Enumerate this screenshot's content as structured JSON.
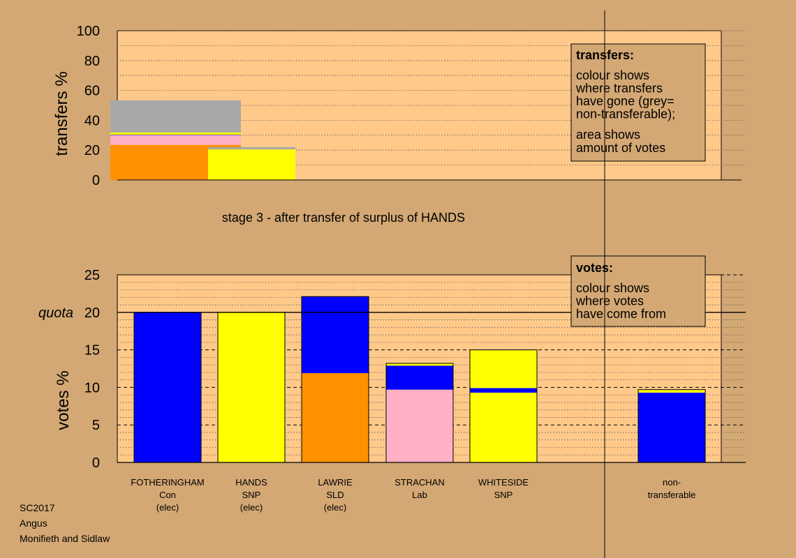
{
  "colors": {
    "background": "#D4A874",
    "plot_background": "#FFC98A",
    "legend_background": "#D4A874",
    "Con": "#0000FF",
    "SNP": "#FFFF00",
    "SLD": "#FF9100",
    "Lab": "#FFB0C4",
    "non_transferable": "#A8A8A8"
  },
  "chart_data": [
    {
      "type": "bar",
      "title": "stage 3 - after transfer of surplus of HANDS",
      "ylabel": "transfers %",
      "ylim": [
        0,
        100
      ],
      "yticks": [
        0,
        20,
        40,
        60,
        80,
        100
      ],
      "grid": true,
      "legend": {
        "placement": "top-right",
        "title": "transfers:",
        "lines_a": [
          "colour shows",
          "where transfers",
          "have gone (grey=",
          "non-transferable);"
        ],
        "lines_b": [
          "area shows",
          "amount of votes"
        ]
      },
      "bars": [
        {
          "source": "FOTHERINGHAM",
          "segments": [
            {
              "to": "SLD",
              "color": "#FF9100",
              "value": 23.5
            },
            {
              "to": "Lab",
              "color": "#FFB0C4",
              "value": 6.5
            },
            {
              "to": "Con",
              "color": "#0000FF",
              "value": 0.3
            },
            {
              "to": "SNP",
              "color": "#FFFF00",
              "value": 1.5
            },
            {
              "to": "non-transferable",
              "color": "#A8A8A8",
              "value": 21.5
            }
          ]
        },
        {
          "source": "HANDS",
          "segments": [
            {
              "to": "SNP",
              "color": "#FFFF00",
              "value": 20.5
            },
            {
              "to": "non-transferable",
              "color": "#A8A8A8",
              "value": 1.5
            }
          ]
        }
      ]
    },
    {
      "type": "bar",
      "ylabel": "votes %",
      "ylim": [
        0,
        25
      ],
      "yticks": [
        0,
        5,
        10,
        15,
        20,
        25
      ],
      "quota": {
        "label": "quota",
        "value": 20
      },
      "grid": true,
      "legend": {
        "placement": "top-right",
        "title": "votes:",
        "lines": [
          "colour shows",
          "where votes",
          "have come from"
        ]
      },
      "categories": [
        {
          "lines": [
            "FOTHERINGHAM",
            "Con",
            "(elec)"
          ]
        },
        {
          "lines": [
            "HANDS",
            "SNP",
            "(elec)"
          ]
        },
        {
          "lines": [
            "LAWRIE",
            "SLD",
            "(elec)"
          ]
        },
        {
          "lines": [
            "STRACHAN",
            "Lab"
          ]
        },
        {
          "lines": [
            "WHITESIDE",
            "SNP"
          ]
        },
        {
          "lines": [
            "non-",
            "transferable"
          ]
        }
      ],
      "bars": [
        {
          "name": "FOTHERINGHAM",
          "segments": [
            {
              "from": "Con",
              "color": "#0000FF",
              "value": 20.0
            }
          ]
        },
        {
          "name": "HANDS",
          "segments": [
            {
              "from": "SNP",
              "color": "#FFFF00",
              "value": 20.0
            }
          ]
        },
        {
          "name": "LAWRIE",
          "segments": [
            {
              "from": "SLD",
              "color": "#FF9100",
              "value": 11.9
            },
            {
              "from": "Con",
              "color": "#0000FF",
              "value": 10.2
            }
          ]
        },
        {
          "name": "STRACHAN",
          "segments": [
            {
              "from": "Lab",
              "color": "#FFB0C4",
              "value": 9.7
            },
            {
              "from": "Con",
              "color": "#0000FF",
              "value": 3.2
            },
            {
              "from": "SNP",
              "color": "#FFFF00",
              "value": 0.3
            }
          ]
        },
        {
          "name": "WHITESIDE",
          "segments": [
            {
              "from": "SNP",
              "color": "#FFFF00",
              "value": 9.3
            },
            {
              "from": "Con",
              "color": "#0000FF",
              "value": 0.6
            },
            {
              "from": "SNP",
              "color": "#FFFF00",
              "value": 5.1
            }
          ]
        },
        {
          "name": "non-transferable",
          "segments": [
            {
              "from": "Con",
              "color": "#0000FF",
              "value": 9.3
            },
            {
              "from": "SNP",
              "color": "#FFFF00",
              "value": 0.4
            }
          ]
        }
      ]
    }
  ],
  "footer": [
    "SC2017",
    "Angus",
    "Monifieth and Sidlaw"
  ]
}
